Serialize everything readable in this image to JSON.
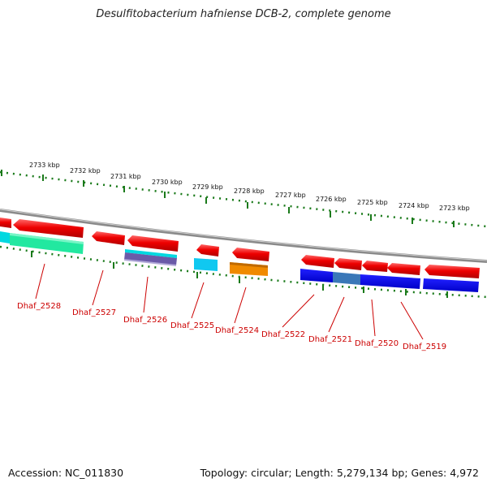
{
  "title": "Desulfitobacterium hafniense DCB-2, complete genome",
  "footer": {
    "accession": "Accession: NC_011830",
    "summary": "Topology: circular; Length: 5,279,134 bp; Genes: 4,972"
  },
  "colors": {
    "cds_red": "#ee0000",
    "backbone": "#8a8a8a",
    "tick_green": "#1a7a1a",
    "label_red": "#cc0000"
  },
  "kbp_labels": [
    "2733 kbp",
    "2732 kbp",
    "2731 kbp",
    "2730 kbp",
    "2729 kbp",
    "2728 kbp",
    "2727 kbp",
    "2726 kbp",
    "2725 kbp",
    "2724 kbp",
    "2723 kbp"
  ],
  "genes": [
    {
      "id": "g2528",
      "label": "Dhaf_2528"
    },
    {
      "id": "g2527",
      "label": "Dhaf_2527"
    },
    {
      "id": "g2526",
      "label": "Dhaf_2526"
    },
    {
      "id": "g2525",
      "label": "Dhaf_2525"
    },
    {
      "id": "g2524",
      "label": "Dhaf_2524"
    },
    {
      "id": "g2522",
      "label": "Dhaf_2522"
    },
    {
      "id": "g2521",
      "label": "Dhaf_2521"
    },
    {
      "id": "g2520",
      "label": "Dhaf_2520"
    },
    {
      "id": "g2519",
      "label": "Dhaf_2519"
    }
  ],
  "domain_colors": {
    "teal": "#00d8e0",
    "green": "#22e8a0",
    "purple": "#6a5aa8",
    "cyan": "#10c8f0",
    "orange": "#f08a00",
    "blue": "#0000e8",
    "steel": "#3a78b8"
  }
}
